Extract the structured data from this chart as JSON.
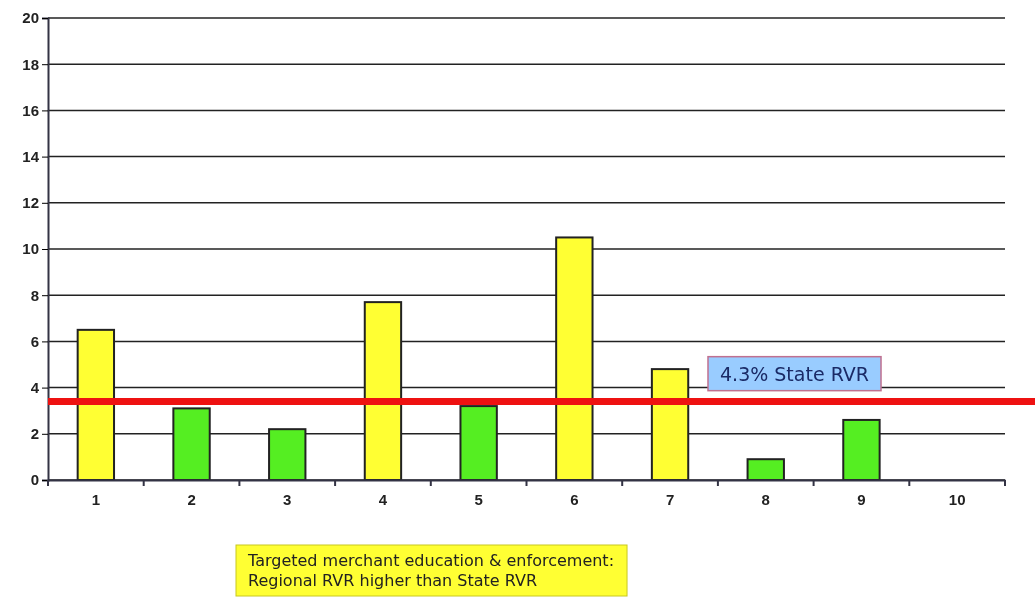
{
  "chart_data": {
    "type": "bar",
    "categories": [
      "1",
      "2",
      "3",
      "4",
      "5",
      "6",
      "7",
      "8",
      "9",
      "10"
    ],
    "values": [
      6.5,
      3.1,
      2.2,
      7.7,
      3.2,
      10.5,
      4.8,
      0.9,
      2.6,
      null
    ],
    "colors": [
      "#ffff33",
      "#55ee22",
      "#55ee22",
      "#ffff33",
      "#55ee22",
      "#ffff33",
      "#ffff33",
      "#55ee22",
      "#55ee22",
      null
    ],
    "ylim": [
      0,
      20
    ],
    "yticks": [
      0,
      2,
      4,
      6,
      8,
      10,
      12,
      14,
      16,
      18,
      20
    ],
    "grid": "y",
    "ref_lines": [
      {
        "axis": "y",
        "value": 3.4,
        "label": "4.3% State RVR",
        "color": "#ee1111"
      }
    ],
    "annotations": [
      "Targeted merchant education & enforcement:\nRegional RVR higher than State RVR"
    ]
  }
}
